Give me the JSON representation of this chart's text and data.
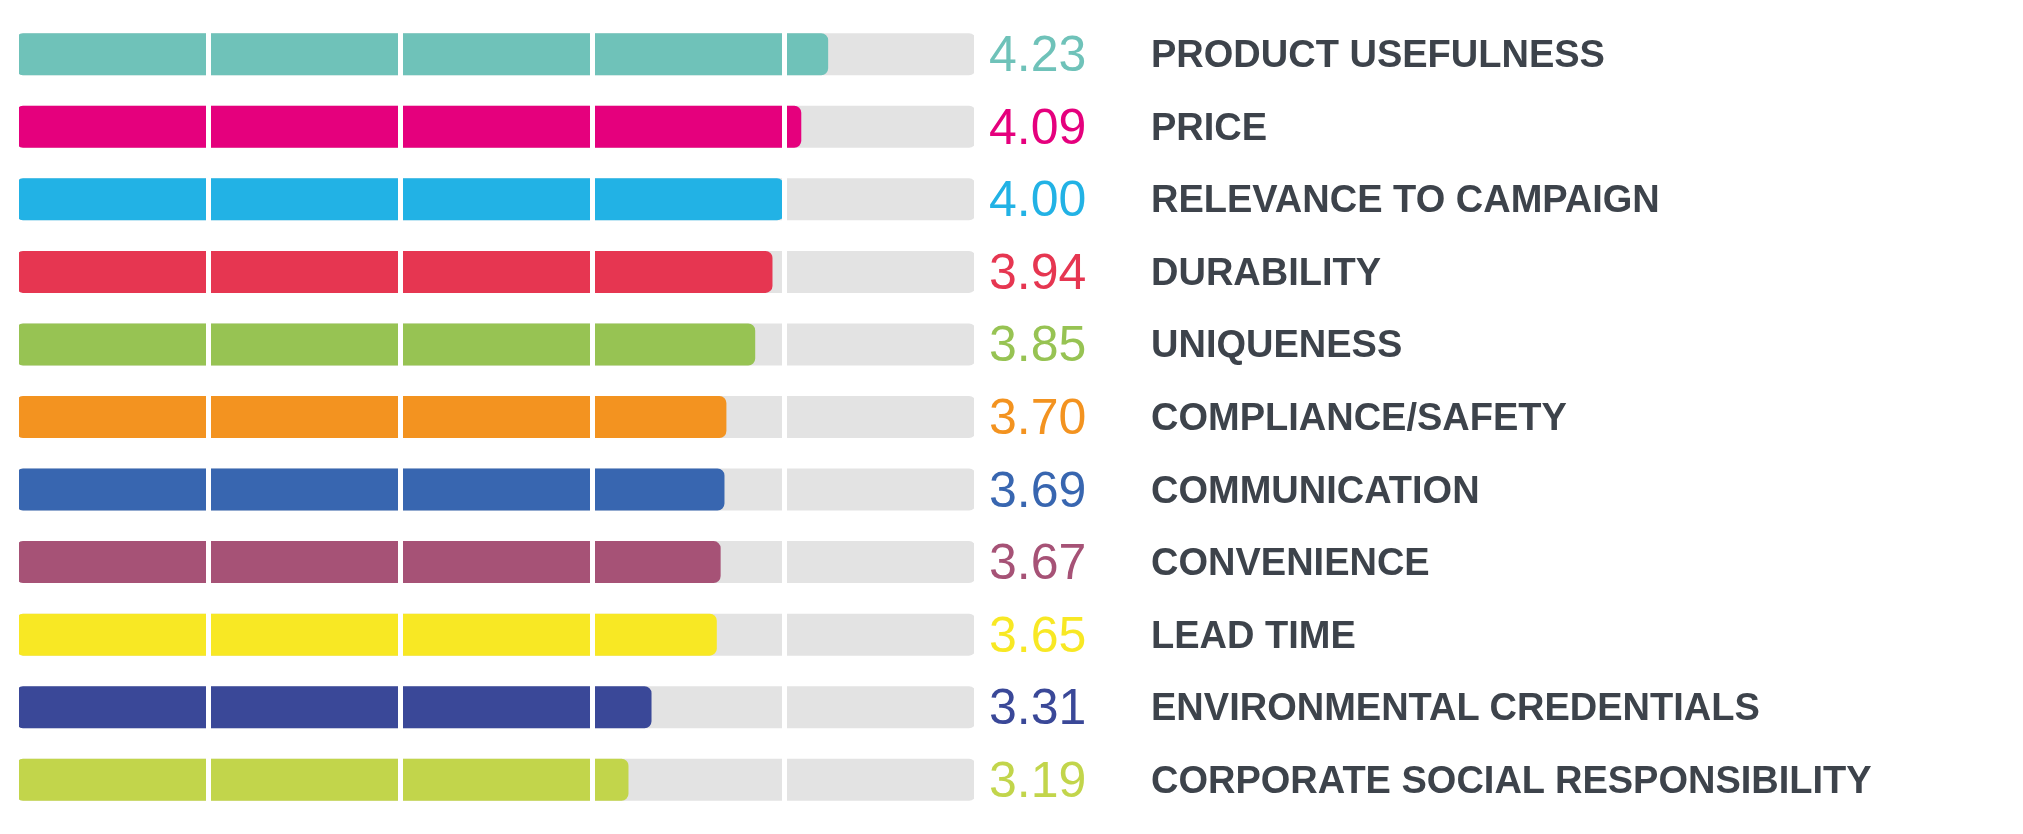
{
  "chart_data": {
    "type": "bar",
    "orientation": "horizontal",
    "categories": [
      "PRODUCT USEFULNESS",
      "PRICE",
      "RELEVANCE TO CAMPAIGN",
      "DURABILITY",
      "UNIQUENESS",
      "COMPLIANCE/SAFETY",
      "COMMUNICATION",
      "CONVENIENCE",
      "LEAD TIME",
      "ENVIRONMENTAL CREDENTIALS",
      "CORPORATE SOCIAL RESPONSIBILITY"
    ],
    "values": [
      4.23,
      4.09,
      4.0,
      3.94,
      3.85,
      3.7,
      3.69,
      3.67,
      3.65,
      3.31,
      3.19
    ],
    "colors": [
      "#6fc2b9",
      "#e5007d",
      "#22b2e5",
      "#e63651",
      "#97c353",
      "#f39320",
      "#3866b0",
      "#a65276",
      "#f8e824",
      "#3a4898",
      "#c2d54b"
    ],
    "xlim": [
      0,
      5
    ],
    "xticks": [
      {
        "value": 0,
        "label": null
      },
      {
        "value": 1,
        "label": null
      },
      {
        "value": 2,
        "label": null
      },
      {
        "value": 3,
        "label": null
      },
      {
        "value": 4,
        "label": null
      },
      {
        "value": 5,
        "label": null
      }
    ],
    "value_labels": [
      "4.23",
      "4.09",
      "4.00",
      "3.94",
      "3.85",
      "3.70",
      "3.69",
      "3.67",
      "3.65",
      "3.31",
      "3.19"
    ],
    "tick_labels": "y",
    "grid": "x"
  }
}
